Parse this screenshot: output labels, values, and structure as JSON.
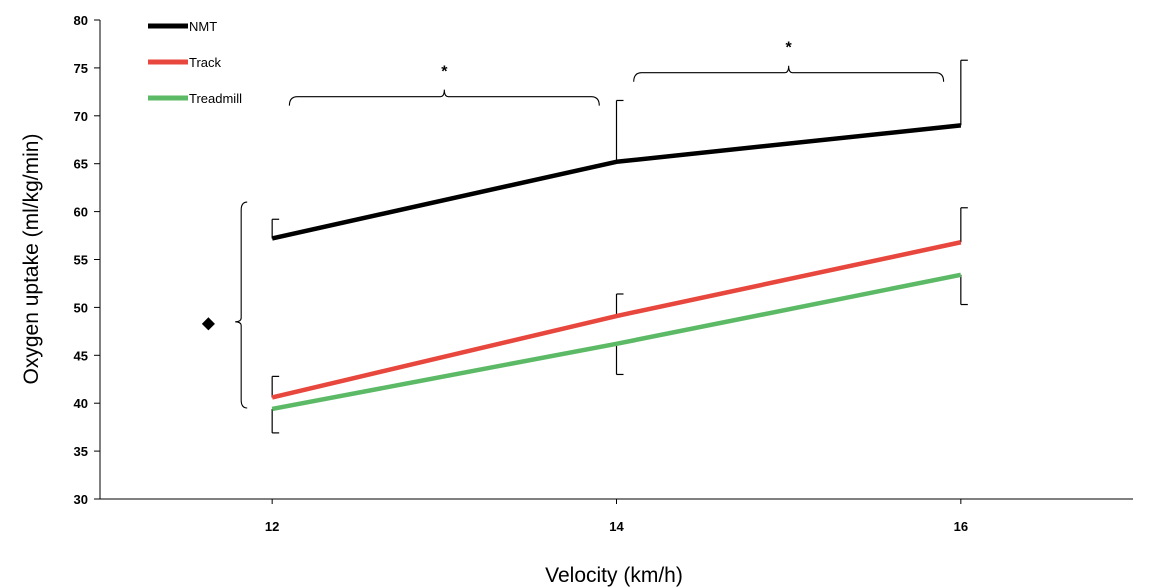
{
  "chart_data": {
    "type": "line",
    "title": "",
    "xlabel": "Velocity (km/h)",
    "ylabel": "Oxygen uptake (ml/kg/min)",
    "categories": [
      "12",
      "14",
      "16"
    ],
    "x": [
      12,
      14,
      16
    ],
    "xlim": [
      11,
      17
    ],
    "ylim": [
      30,
      80
    ],
    "yticks": [
      30,
      35,
      40,
      45,
      50,
      55,
      60,
      65,
      70,
      75,
      80
    ],
    "grid": false,
    "legend_position": "top-left",
    "series": [
      {
        "name": "NMT",
        "color": "#000000",
        "values": [
          57.2,
          65.2,
          69.0
        ],
        "error": [
          2.0,
          6.4,
          6.8
        ],
        "error_direction": "up"
      },
      {
        "name": "Track",
        "color": "#e8473e",
        "values": [
          40.6,
          49.1,
          56.8
        ],
        "error": [
          2.2,
          2.3,
          3.6
        ],
        "error_direction": "up"
      },
      {
        "name": "Treadmill",
        "color": "#5cba66",
        "values": [
          39.4,
          46.2,
          53.4
        ],
        "error": [
          2.5,
          3.2,
          3.1
        ],
        "error_direction": "down"
      }
    ],
    "annotations": [
      {
        "text": "*",
        "x_from": 12.1,
        "x_to": 13.9,
        "y": 72.0
      },
      {
        "text": "*",
        "x_from": 14.1,
        "x_to": 15.9,
        "y": 74.5
      },
      {
        "text": "◆",
        "x": 11.63,
        "y": 48.5
      }
    ]
  }
}
